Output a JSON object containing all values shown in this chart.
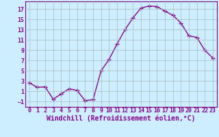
{
  "x": [
    0,
    1,
    2,
    3,
    4,
    5,
    6,
    7,
    8,
    9,
    10,
    11,
    12,
    13,
    14,
    15,
    16,
    17,
    18,
    19,
    20,
    21,
    22,
    23
  ],
  "y": [
    2.7,
    1.8,
    1.9,
    -0.5,
    0.5,
    1.5,
    1.2,
    -0.8,
    -0.6,
    5.0,
    7.2,
    10.2,
    13.0,
    15.3,
    17.2,
    17.6,
    17.5,
    16.6,
    15.8,
    14.3,
    11.8,
    11.5,
    9.0,
    7.5
  ],
  "line_color": "#880088",
  "marker": "+",
  "marker_size": 4,
  "bg_color": "#cceeff",
  "grid_color": "#aabbbb",
  "xlabel": "Windchill (Refroidissement éolien,°C)",
  "xlim": [
    -0.5,
    23.5
  ],
  "ylim": [
    -2,
    18.5
  ],
  "yticks": [
    -1,
    1,
    3,
    5,
    7,
    9,
    11,
    13,
    15,
    17
  ],
  "xticks": [
    0,
    1,
    2,
    3,
    4,
    5,
    6,
    7,
    8,
    9,
    10,
    11,
    12,
    13,
    14,
    15,
    16,
    17,
    18,
    19,
    20,
    21,
    22,
    23
  ],
  "tick_fontsize": 6,
  "xlabel_fontsize": 7,
  "line_width": 1.0
}
